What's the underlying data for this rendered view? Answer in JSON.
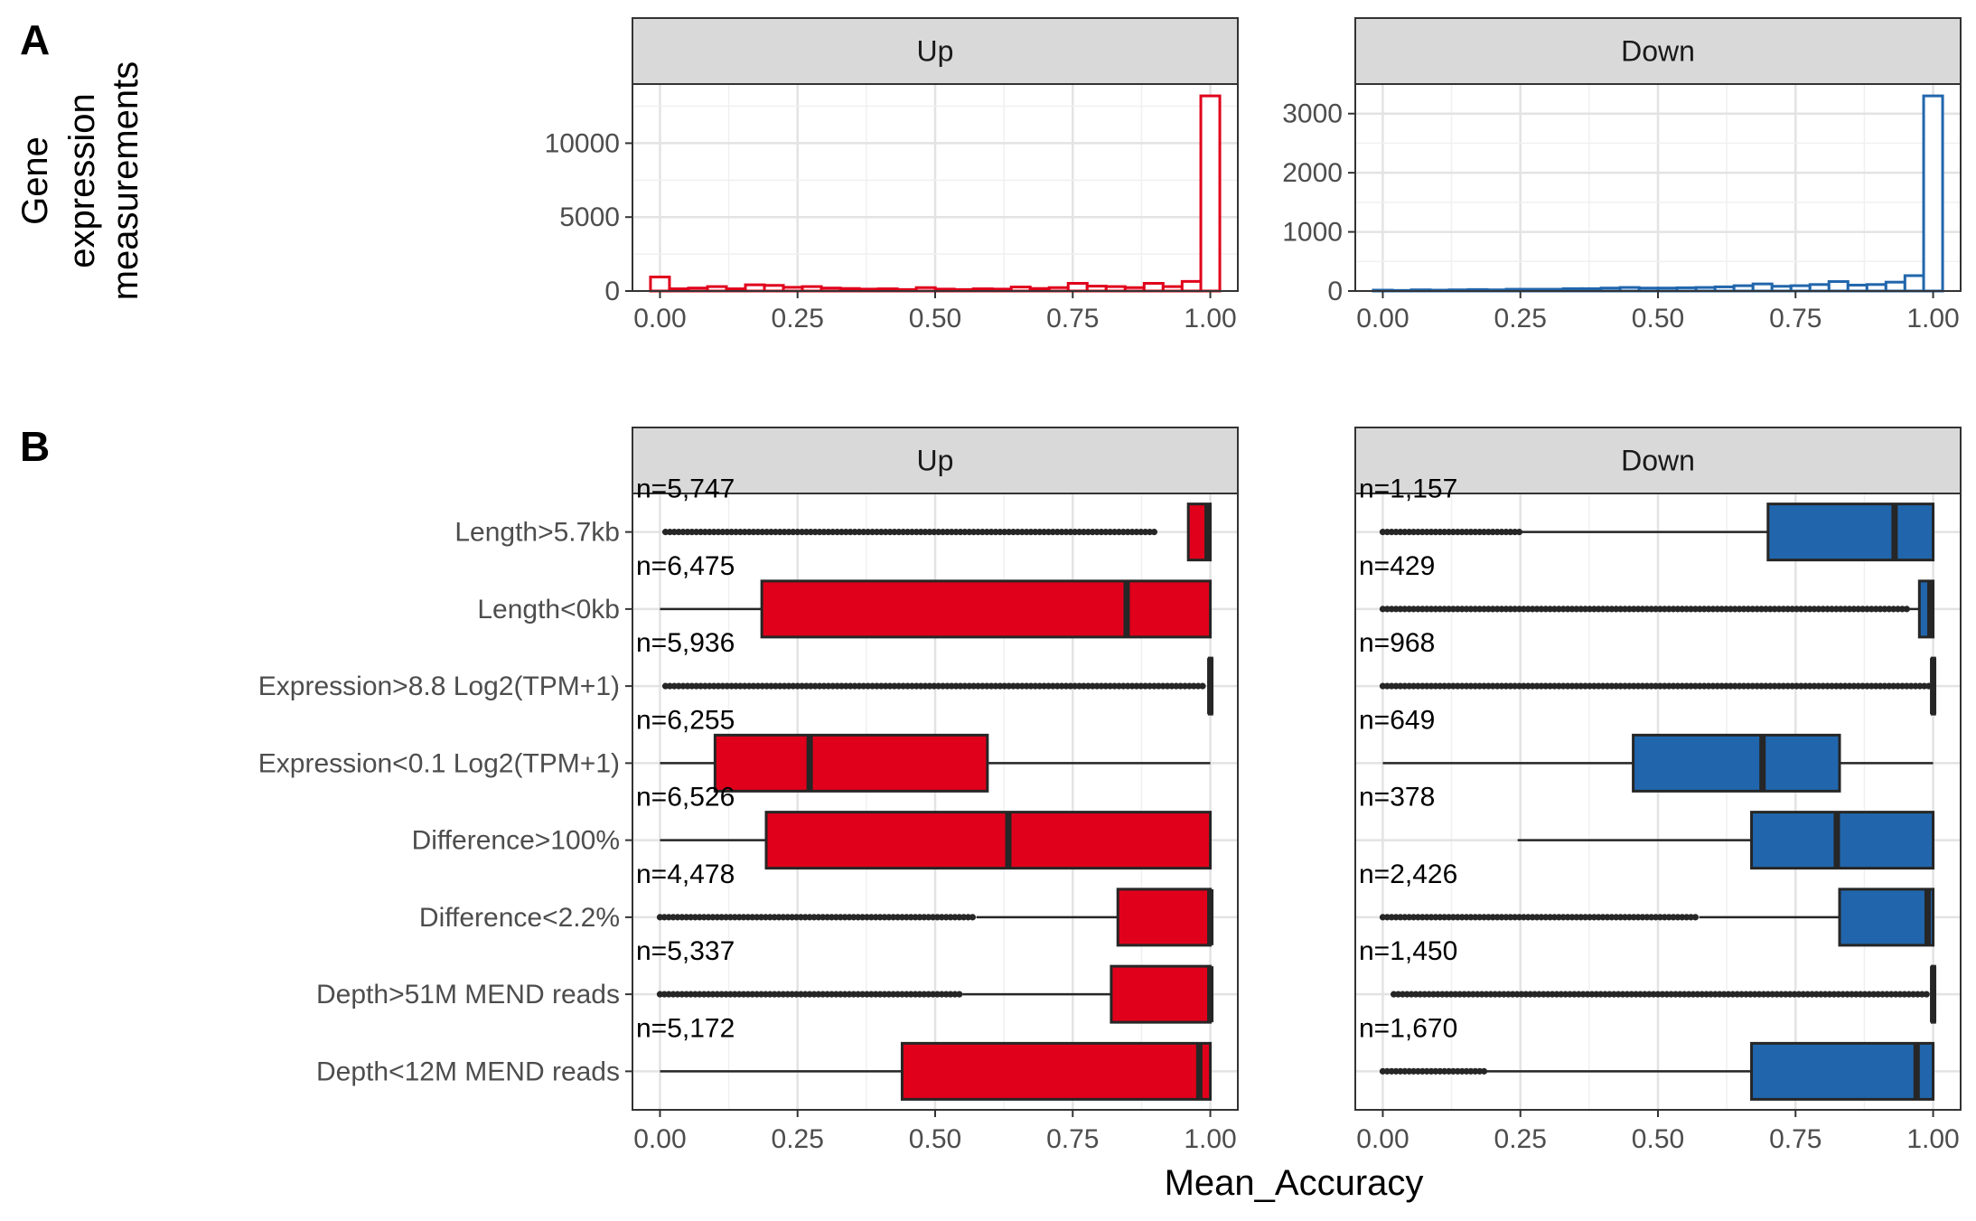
{
  "panel_labels": [
    "A",
    "B"
  ],
  "chart_data": [
    {
      "type": "histogram",
      "panel": "A",
      "ylabel": "Gene expression measurements",
      "ylabel_lines": [
        "Gene",
        "expression",
        "measurements"
      ],
      "xlim": [
        -0.05,
        1.05
      ],
      "x_ticks": [
        "0.00",
        "0.25",
        "0.50",
        "0.75",
        "1.00"
      ],
      "grid": true,
      "facets": [
        {
          "name": "Up",
          "color": "#e0001b",
          "ylim": [
            0,
            14000
          ],
          "y_ticks": [
            0,
            5000,
            10000
          ],
          "y_tick_labels": [
            "0",
            "5000",
            "10000"
          ],
          "bin_width": 0.0345,
          "bins_x": [
            0.0,
            0.0345,
            0.069,
            0.1035,
            0.138,
            0.1725,
            0.207,
            0.2415,
            0.276,
            0.3105,
            0.345,
            0.3795,
            0.414,
            0.4485,
            0.483,
            0.5175,
            0.552,
            0.5865,
            0.621,
            0.6555,
            0.69,
            0.7245,
            0.759,
            0.7935,
            0.828,
            0.8625,
            0.897,
            0.9315,
            0.966,
            1.0
          ],
          "counts": [
            950,
            150,
            200,
            300,
            150,
            420,
            380,
            250,
            300,
            200,
            170,
            130,
            150,
            100,
            230,
            130,
            100,
            150,
            130,
            270,
            170,
            230,
            520,
            330,
            300,
            230,
            520,
            300,
            650,
            13200
          ]
        },
        {
          "name": "Down",
          "color": "#2166ac",
          "ylim": [
            0,
            3500
          ],
          "y_ticks": [
            0,
            1000,
            2000,
            3000
          ],
          "y_tick_labels": [
            "0",
            "1000",
            "2000",
            "3000"
          ],
          "bin_width": 0.0345,
          "bins_x": [
            0.0,
            0.0345,
            0.069,
            0.1035,
            0.138,
            0.1725,
            0.207,
            0.2415,
            0.276,
            0.3105,
            0.345,
            0.3795,
            0.414,
            0.4485,
            0.483,
            0.5175,
            0.552,
            0.5865,
            0.621,
            0.6555,
            0.69,
            0.7245,
            0.759,
            0.7935,
            0.828,
            0.8625,
            0.897,
            0.9315,
            0.966,
            1.0
          ],
          "counts": [
            15,
            10,
            20,
            15,
            20,
            25,
            20,
            30,
            30,
            30,
            40,
            40,
            50,
            60,
            50,
            50,
            55,
            60,
            70,
            90,
            120,
            80,
            90,
            110,
            160,
            100,
            110,
            150,
            260,
            3300
          ]
        }
      ]
    },
    {
      "type": "boxplot",
      "panel": "B",
      "xlabel": "Mean_Accuracy",
      "xlim": [
        -0.05,
        1.05
      ],
      "x_ticks": [
        "0.00",
        "0.25",
        "0.50",
        "0.75",
        "1.00"
      ],
      "grid": true,
      "categories": [
        "Length>5.7kb",
        "Length<0kb",
        "Expression>8.8 Log2(TPM+1)",
        "Expression<0.1 Log2(TPM+1)",
        "Difference>100%",
        "Difference<2.2%",
        "Depth>51M MEND reads",
        "Depth<12M MEND reads"
      ],
      "facets": [
        {
          "name": "Up",
          "color": "#e0001b",
          "boxes": [
            {
              "n": "n=5,747",
              "whisker_low": 0.96,
              "q1": 0.96,
              "median": 0.995,
              "q3": 1.0,
              "whisker_high": 1.0,
              "outlier_ranges": [
                [
                  0.01,
                  0.905
                ]
              ]
            },
            {
              "n": "n=6,475",
              "whisker_low": 0.0,
              "q1": 0.185,
              "median": 0.848,
              "q3": 1.0,
              "whisker_high": 1.0,
              "outlier_ranges": []
            },
            {
              "n": "n=5,936",
              "whisker_low": 0.995,
              "q1": 0.998,
              "median": 1.0,
              "q3": 1.0,
              "whisker_high": 1.0,
              "outlier_ranges": [
                [
                  0.01,
                  0.99
                ]
              ]
            },
            {
              "n": "n=6,255",
              "whisker_low": 0.0,
              "q1": 0.1,
              "median": 0.272,
              "q3": 0.595,
              "whisker_high": 1.0,
              "outlier_ranges": []
            },
            {
              "n": "n=6,526",
              "whisker_low": 0.0,
              "q1": 0.193,
              "median": 0.633,
              "q3": 1.0,
              "whisker_high": 1.0,
              "outlier_ranges": []
            },
            {
              "n": "n=4,478",
              "whisker_low": 0.575,
              "q1": 0.832,
              "median": 1.0,
              "q3": 1.0,
              "whisker_high": 1.0,
              "outlier_ranges": [
                [
                  0.0,
                  0.575
                ]
              ]
            },
            {
              "n": "n=5,337",
              "whisker_low": 0.55,
              "q1": 0.82,
              "median": 1.0,
              "q3": 1.0,
              "whisker_high": 1.0,
              "outlier_ranges": [
                [
                  0.0,
                  0.55
                ]
              ]
            },
            {
              "n": "n=5,172",
              "whisker_low": 0.0,
              "q1": 0.44,
              "median": 0.98,
              "q3": 1.0,
              "whisker_high": 1.0,
              "outlier_ranges": []
            }
          ]
        },
        {
          "name": "Down",
          "color": "#2166ac",
          "boxes": [
            {
              "n": "n=1,157",
              "whisker_low": 0.25,
              "q1": 0.7,
              "median": 0.93,
              "q3": 1.0,
              "whisker_high": 1.0,
              "outlier_ranges": [
                [
                  0.0,
                  0.25
                ]
              ]
            },
            {
              "n": "n=429",
              "whisker_low": 0.955,
              "q1": 0.975,
              "median": 0.995,
              "q3": 1.0,
              "whisker_high": 1.0,
              "outlier_ranges": [
                [
                  0.0,
                  0.955
                ]
              ]
            },
            {
              "n": "n=968",
              "whisker_low": 0.995,
              "q1": 0.998,
              "median": 1.0,
              "q3": 1.0,
              "whisker_high": 1.0,
              "outlier_ranges": [
                [
                  0.0,
                  0.995
                ]
              ]
            },
            {
              "n": "n=649",
              "whisker_low": 0.0,
              "q1": 0.455,
              "median": 0.69,
              "q3": 0.83,
              "whisker_high": 1.0,
              "outlier_ranges": []
            },
            {
              "n": "n=378",
              "whisker_low": 0.245,
              "q1": 0.67,
              "median": 0.825,
              "q3": 1.0,
              "whisker_high": 1.0,
              "outlier_ranges": []
            },
            {
              "n": "n=2,426",
              "whisker_low": 0.575,
              "q1": 0.83,
              "median": 0.99,
              "q3": 1.0,
              "whisker_high": 1.0,
              "outlier_ranges": [
                [
                  0.0,
                  0.575
                ]
              ]
            },
            {
              "n": "n=1,450",
              "whisker_low": 0.995,
              "q1": 0.998,
              "median": 1.0,
              "q3": 1.0,
              "whisker_high": 1.0,
              "outlier_ranges": [
                [
                  0.02,
                  0.995
                ]
              ]
            },
            {
              "n": "n=1,670",
              "whisker_low": 0.185,
              "q1": 0.67,
              "median": 0.97,
              "q3": 1.0,
              "whisker_high": 1.0,
              "outlier_ranges": [
                [
                  0.0,
                  0.185
                ]
              ]
            }
          ]
        }
      ]
    }
  ]
}
